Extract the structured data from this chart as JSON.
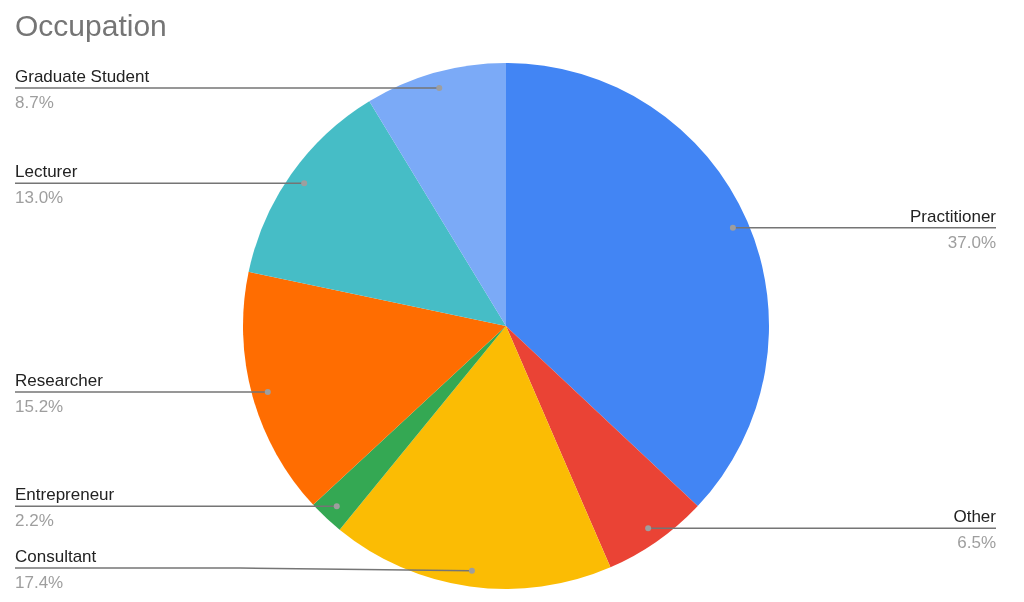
{
  "chart_data": {
    "type": "pie",
    "title": "Occupation",
    "categories": [
      "Practitioner",
      "Other",
      "Consultant",
      "Entrepreneur",
      "Researcher",
      "Lecturer",
      "Graduate Student"
    ],
    "values": [
      37.0,
      6.5,
      17.4,
      2.2,
      15.2,
      13.0,
      8.7
    ],
    "colors": [
      "#4285f4",
      "#ea4335",
      "#fbbc04",
      "#34a853",
      "#ff6d01",
      "#46bdc6",
      "#7baaf7"
    ],
    "value_labels": [
      "37.0%",
      "6.5%",
      "17.4%",
      "2.2%",
      "15.2%",
      "13.0%",
      "8.7%"
    ]
  }
}
